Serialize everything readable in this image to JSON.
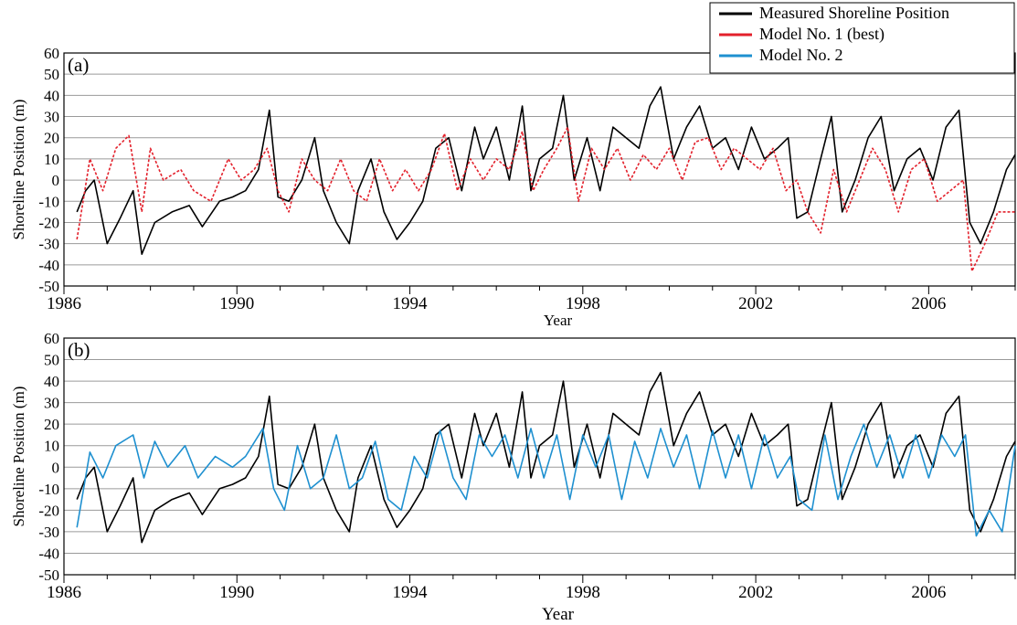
{
  "legend": {
    "entries": [
      {
        "label": "Measured Shoreline Position",
        "color": "#000000"
      },
      {
        "label": "Model No. 1 (best)",
        "color": "#e3202b"
      },
      {
        "label": "Model No. 2",
        "color": "#1e90d0"
      }
    ]
  },
  "chart_data": [
    {
      "type": "line",
      "panel_label": "(a)",
      "xlabel": "Year",
      "ylabel": "Shoreline Position (m)",
      "xlim": [
        1986,
        2008
      ],
      "ylim": [
        -50,
        60
      ],
      "x_ticks": [
        1986,
        1990,
        1994,
        1998,
        2002,
        2006
      ],
      "y_ticks": [
        -50,
        -40,
        -30,
        -20,
        -10,
        0,
        10,
        20,
        30,
        40,
        50,
        60
      ],
      "grid": "horizontal",
      "series": [
        {
          "name": "Measured Shoreline Position",
          "color": "#000000",
          "style": "solid",
          "x": [
            1986.3,
            1986.5,
            1986.7,
            1987.0,
            1987.3,
            1987.6,
            1987.8,
            1988.1,
            1988.5,
            1988.9,
            1989.2,
            1989.6,
            1989.9,
            1990.2,
            1990.5,
            1990.75,
            1990.95,
            1991.2,
            1991.5,
            1991.8,
            1992.0,
            1992.3,
            1992.6,
            1992.8,
            1993.1,
            1993.4,
            1993.7,
            1994.0,
            1994.3,
            1994.6,
            1994.9,
            1995.2,
            1995.5,
            1995.7,
            1996.0,
            1996.3,
            1996.6,
            1996.8,
            1997.0,
            1997.3,
            1997.55,
            1997.8,
            1998.1,
            1998.4,
            1998.7,
            1999.0,
            1999.3,
            1999.55,
            1999.8,
            2000.1,
            2000.4,
            2000.7,
            2001.0,
            2001.3,
            2001.6,
            2001.9,
            2002.2,
            2002.5,
            2002.75,
            2002.95,
            2003.2,
            2003.5,
            2003.75,
            2004.0,
            2004.3,
            2004.6,
            2004.9,
            2005.2,
            2005.5,
            2005.8,
            2006.1,
            2006.4,
            2006.7,
            2006.95,
            2007.2,
            2007.5,
            2007.8,
            2008.0
          ],
          "y": [
            -15,
            -5,
            0,
            -30,
            -18,
            -5,
            -35,
            -20,
            -15,
            -12,
            -22,
            -10,
            -8,
            -5,
            5,
            33,
            -8,
            -10,
            0,
            20,
            -5,
            -20,
            -30,
            -5,
            10,
            -15,
            -28,
            -20,
            -10,
            15,
            20,
            -5,
            25,
            10,
            25,
            0,
            35,
            -5,
            10,
            15,
            40,
            0,
            20,
            -5,
            25,
            20,
            15,
            35,
            44,
            10,
            25,
            35,
            15,
            20,
            5,
            25,
            10,
            15,
            20,
            -18,
            -15,
            10,
            30,
            -15,
            0,
            20,
            30,
            -5,
            10,
            15,
            0,
            25,
            33,
            -20,
            -30,
            -15,
            5,
            12
          ]
        },
        {
          "name": "Model No. 1 (best)",
          "color": "#e3202b",
          "style": "dashed",
          "x": [
            1986.3,
            1986.6,
            1986.9,
            1987.2,
            1987.5,
            1987.8,
            1988.0,
            1988.3,
            1988.7,
            1989.0,
            1989.4,
            1989.8,
            1990.1,
            1990.4,
            1990.7,
            1990.95,
            1991.2,
            1991.5,
            1991.8,
            1992.1,
            1992.4,
            1992.7,
            1993.0,
            1993.3,
            1993.6,
            1993.9,
            1994.2,
            1994.5,
            1994.8,
            1995.1,
            1995.4,
            1995.7,
            1996.0,
            1996.3,
            1996.6,
            1996.85,
            1997.1,
            1997.4,
            1997.65,
            1997.9,
            1998.2,
            1998.5,
            1998.8,
            1999.1,
            1999.4,
            1999.7,
            2000.0,
            2000.3,
            2000.6,
            2000.9,
            2001.2,
            2001.5,
            2001.8,
            2002.1,
            2002.4,
            2002.7,
            2002.95,
            2003.2,
            2003.5,
            2003.8,
            2004.1,
            2004.4,
            2004.7,
            2005.0,
            2005.3,
            2005.6,
            2005.9,
            2006.2,
            2006.5,
            2006.8,
            2007.0,
            2007.3,
            2007.6,
            2008.0
          ],
          "y": [
            -28,
            10,
            -5,
            15,
            21,
            -15,
            15,
            0,
            5,
            -5,
            -10,
            10,
            0,
            5,
            15,
            -5,
            -15,
            10,
            0,
            -5,
            10,
            -5,
            -10,
            10,
            -5,
            5,
            -5,
            5,
            22,
            -5,
            10,
            0,
            10,
            5,
            23,
            -5,
            5,
            15,
            25,
            -10,
            15,
            5,
            15,
            0,
            12,
            5,
            15,
            0,
            18,
            20,
            5,
            15,
            10,
            5,
            15,
            -5,
            0,
            -15,
            -25,
            5,
            -15,
            0,
            15,
            5,
            -15,
            5,
            10,
            -10,
            -5,
            0,
            -43,
            -30,
            -15,
            -15
          ]
        }
      ]
    },
    {
      "type": "line",
      "panel_label": "(b)",
      "xlabel": "Year",
      "ylabel": "Shoreline Position (m)",
      "xlim": [
        1986,
        2008
      ],
      "ylim": [
        -50,
        60
      ],
      "x_ticks": [
        1986,
        1990,
        1994,
        1998,
        2002,
        2006
      ],
      "y_ticks": [
        -50,
        -40,
        -30,
        -20,
        -10,
        0,
        10,
        20,
        30,
        40,
        50,
        60
      ],
      "grid": "horizontal",
      "series": [
        {
          "name": "Measured Shoreline Position",
          "color": "#000000",
          "style": "solid",
          "x": [
            1986.3,
            1986.5,
            1986.7,
            1987.0,
            1987.3,
            1987.6,
            1987.8,
            1988.1,
            1988.5,
            1988.9,
            1989.2,
            1989.6,
            1989.9,
            1990.2,
            1990.5,
            1990.75,
            1990.95,
            1991.2,
            1991.5,
            1991.8,
            1992.0,
            1992.3,
            1992.6,
            1992.8,
            1993.1,
            1993.4,
            1993.7,
            1994.0,
            1994.3,
            1994.6,
            1994.9,
            1995.2,
            1995.5,
            1995.7,
            1996.0,
            1996.3,
            1996.6,
            1996.8,
            1997.0,
            1997.3,
            1997.55,
            1997.8,
            1998.1,
            1998.4,
            1998.7,
            1999.0,
            1999.3,
            1999.55,
            1999.8,
            2000.1,
            2000.4,
            2000.7,
            2001.0,
            2001.3,
            2001.6,
            2001.9,
            2002.2,
            2002.5,
            2002.75,
            2002.95,
            2003.2,
            2003.5,
            2003.75,
            2004.0,
            2004.3,
            2004.6,
            2004.9,
            2005.2,
            2005.5,
            2005.8,
            2006.1,
            2006.4,
            2006.7,
            2006.95,
            2007.2,
            2007.5,
            2007.8,
            2008.0
          ],
          "y": [
            -15,
            -5,
            0,
            -30,
            -18,
            -5,
            -35,
            -20,
            -15,
            -12,
            -22,
            -10,
            -8,
            -5,
            5,
            33,
            -8,
            -10,
            0,
            20,
            -5,
            -20,
            -30,
            -5,
            10,
            -15,
            -28,
            -20,
            -10,
            15,
            20,
            -5,
            25,
            10,
            25,
            0,
            35,
            -5,
            10,
            15,
            40,
            0,
            20,
            -5,
            25,
            20,
            15,
            35,
            44,
            10,
            25,
            35,
            15,
            20,
            5,
            25,
            10,
            15,
            20,
            -18,
            -15,
            10,
            30,
            -15,
            0,
            20,
            30,
            -5,
            10,
            15,
            0,
            25,
            33,
            -20,
            -30,
            -15,
            5,
            12
          ]
        },
        {
          "name": "Model No. 2",
          "color": "#1e90d0",
          "style": "solid",
          "x": [
            1986.3,
            1986.6,
            1986.9,
            1987.2,
            1987.6,
            1987.85,
            1988.1,
            1988.4,
            1988.8,
            1989.1,
            1989.5,
            1989.9,
            1990.2,
            1990.6,
            1990.85,
            1991.1,
            1991.4,
            1991.7,
            1992.0,
            1992.3,
            1992.6,
            1992.9,
            1993.2,
            1993.5,
            1993.8,
            1994.1,
            1994.4,
            1994.7,
            1995.0,
            1995.3,
            1995.6,
            1995.9,
            1996.2,
            1996.5,
            1996.8,
            1997.1,
            1997.4,
            1997.7,
            1998.0,
            1998.3,
            1998.6,
            1998.9,
            1999.2,
            1999.5,
            1999.8,
            2000.1,
            2000.4,
            2000.7,
            2001.0,
            2001.3,
            2001.6,
            2001.9,
            2002.2,
            2002.5,
            2002.8,
            2003.0,
            2003.3,
            2003.6,
            2003.9,
            2004.2,
            2004.5,
            2004.8,
            2005.1,
            2005.4,
            2005.7,
            2006.0,
            2006.3,
            2006.6,
            2006.85,
            2007.1,
            2007.4,
            2007.7,
            2008.0
          ],
          "y": [
            -28,
            7,
            -5,
            10,
            15,
            -5,
            12,
            0,
            10,
            -5,
            5,
            0,
            5,
            18,
            -10,
            -20,
            10,
            -10,
            -5,
            15,
            -10,
            -5,
            12,
            -15,
            -20,
            5,
            -5,
            17,
            -5,
            -15,
            15,
            5,
            15,
            -5,
            18,
            -5,
            15,
            -15,
            15,
            0,
            15,
            -15,
            12,
            -5,
            18,
            0,
            15,
            -10,
            17,
            -5,
            15,
            -10,
            15,
            -5,
            5,
            -15,
            -20,
            15,
            -15,
            5,
            20,
            0,
            15,
            -5,
            15,
            -5,
            15,
            5,
            15,
            -32,
            -20,
            -30,
            10
          ]
        }
      ]
    }
  ]
}
